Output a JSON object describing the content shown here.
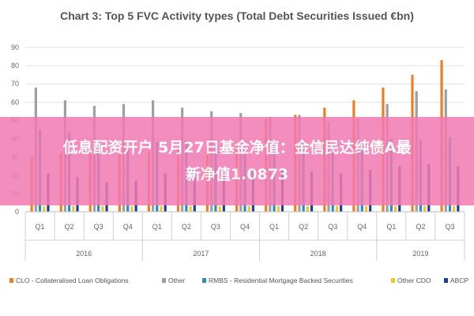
{
  "overlay": {
    "line1": "低息配资开户 5月27日基金净值：金信民达纯债A最",
    "line2": "新净值1.0873",
    "color": "#f27ab2"
  },
  "chart_data": {
    "type": "bar",
    "title": "Chart 3: Top 5 FVC Activity types (Total Debt Securities Issued €bn)",
    "ylim": [
      0,
      90
    ],
    "yticks": [
      0,
      10,
      20,
      30,
      40,
      50,
      60,
      70,
      80,
      90
    ],
    "grid": true,
    "categories": [
      "Q1",
      "Q2",
      "Q3",
      "Q4",
      "Q1",
      "Q2",
      "Q3",
      "Q4",
      "Q1",
      "Q2",
      "Q3",
      "Q4",
      "Q1",
      "Q2",
      "Q3"
    ],
    "years": [
      {
        "label": "2016",
        "count": 4
      },
      {
        "label": "2017",
        "count": 4
      },
      {
        "label": "2018",
        "count": 4
      },
      {
        "label": "2019",
        "count": 3
      }
    ],
    "legend_position": "bottom",
    "series": [
      {
        "name": "CLO - Collateralised Loan Obligations",
        "color": "#f07e1e",
        "values": [
          30,
          32,
          33,
          33,
          33,
          35,
          36,
          37,
          51,
          53,
          57,
          61,
          68,
          75,
          83
        ]
      },
      {
        "name": "Other",
        "color": "#9aa0a6",
        "values": [
          68,
          61,
          58,
          59,
          61,
          57,
          55,
          54,
          52,
          53,
          49,
          51,
          59,
          66,
          67
        ]
      },
      {
        "name": "RMBS - Residential Mortgage Backed Securities",
        "color": "#2a8fb8",
        "values": [
          45,
          44,
          39,
          36,
          38,
          39,
          37,
          36,
          39,
          38,
          37,
          36,
          40,
          39,
          41
        ]
      },
      {
        "name": "Other CDO",
        "color": "#f2c12e",
        "values": [
          3,
          3,
          3,
          3,
          3,
          3,
          3,
          3,
          3,
          3,
          3,
          3,
          3,
          3,
          3
        ]
      },
      {
        "name": "ABCP",
        "color": "#1f3f8f",
        "values": [
          21,
          19,
          16,
          17,
          21,
          19,
          22,
          23,
          23,
          22,
          21,
          23,
          25,
          26,
          25
        ]
      }
    ]
  }
}
